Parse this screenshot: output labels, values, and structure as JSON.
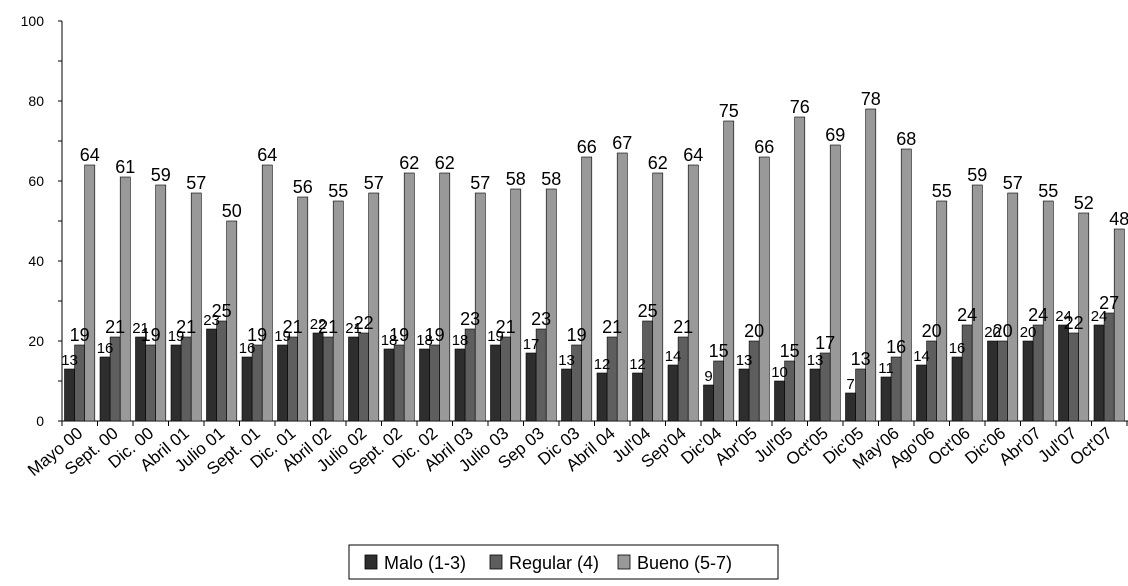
{
  "chart_data": {
    "type": "bar",
    "ylim": [
      0,
      100
    ],
    "yticks": [
      0,
      20,
      40,
      60,
      80,
      100
    ],
    "grid": false,
    "legend_placement": "bottom-center",
    "categories": [
      "Mayo 00",
      "Sept. 00",
      "Dic. 00",
      "Abril 01",
      "Julio 01",
      "Sept. 01",
      "Dic. 01",
      "Abril 02",
      "Julio 02",
      "Sept. 02",
      "Dic. 02",
      "Abril 03",
      "Julio 03",
      "Sep 03",
      "Dic 03",
      "Abril 04",
      "Jul'04",
      "Sep'04",
      "Dic'04",
      "Abr'05",
      "Jul'05",
      "Oct'05",
      "Dic'05",
      "May'06",
      "Ago'06",
      "Oct'06",
      "Dic'06",
      "Abr'07",
      "Jul'07",
      "Oct'07"
    ],
    "series": [
      {
        "name": "Malo (1-3)",
        "color": "#2e2e2e",
        "values": [
          13,
          16,
          21,
          19,
          23,
          16,
          19,
          22,
          21,
          18,
          18,
          18,
          19,
          17,
          13,
          12,
          12,
          14,
          9,
          13,
          10,
          13,
          7,
          11,
          14,
          16,
          20,
          20,
          24,
          24
        ]
      },
      {
        "name": "Regular (4)",
        "color": "#5e5e5e",
        "values": [
          19,
          21,
          19,
          21,
          25,
          19,
          21,
          21,
          22,
          19,
          19,
          23,
          21,
          23,
          19,
          21,
          25,
          21,
          15,
          20,
          15,
          17,
          13,
          16,
          20,
          24,
          20,
          24,
          22,
          27
        ]
      },
      {
        "name": "Bueno (5-7)",
        "color": "#999999",
        "values": [
          64,
          61,
          59,
          57,
          50,
          64,
          56,
          55,
          57,
          62,
          62,
          57,
          58,
          58,
          66,
          67,
          62,
          64,
          75,
          66,
          76,
          69,
          78,
          68,
          55,
          59,
          57,
          55,
          52,
          48
        ]
      }
    ]
  }
}
